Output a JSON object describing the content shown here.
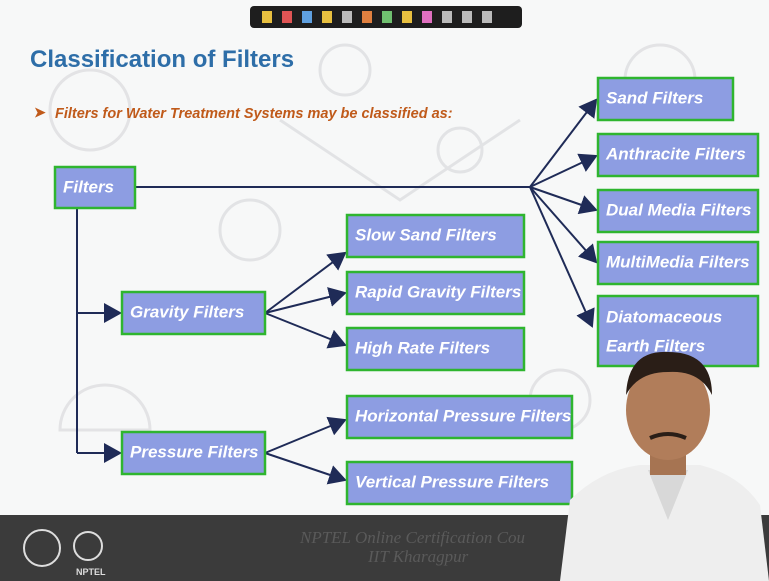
{
  "header": {
    "title": "Classification of Filters"
  },
  "bullet": "Filters for Water Treatment Systems may be classified as:",
  "nodes": [
    {
      "label": "Filters"
    },
    {
      "label": "Gravity Filters"
    },
    {
      "label": "Pressure Filters"
    },
    {
      "label": "Slow Sand Filters"
    },
    {
      "label": "Rapid Gravity Filters"
    },
    {
      "label": "High Rate Filters"
    },
    {
      "label": "Horizontal Pressure Filters"
    },
    {
      "label": "Vertical Pressure Filters"
    },
    {
      "label": "Sand Filters"
    },
    {
      "label": "Anthracite Filters"
    },
    {
      "label": "Dual Media Filters"
    },
    {
      "label": "MultiMedia Filters"
    },
    {
      "lines": [
        "Diatomaceous",
        "Earth Filters"
      ]
    }
  ],
  "footer": {
    "line1": "NPTEL Online Certification Cou",
    "line2": "IIT Kharagpur",
    "logo": "NPTEL"
  }
}
